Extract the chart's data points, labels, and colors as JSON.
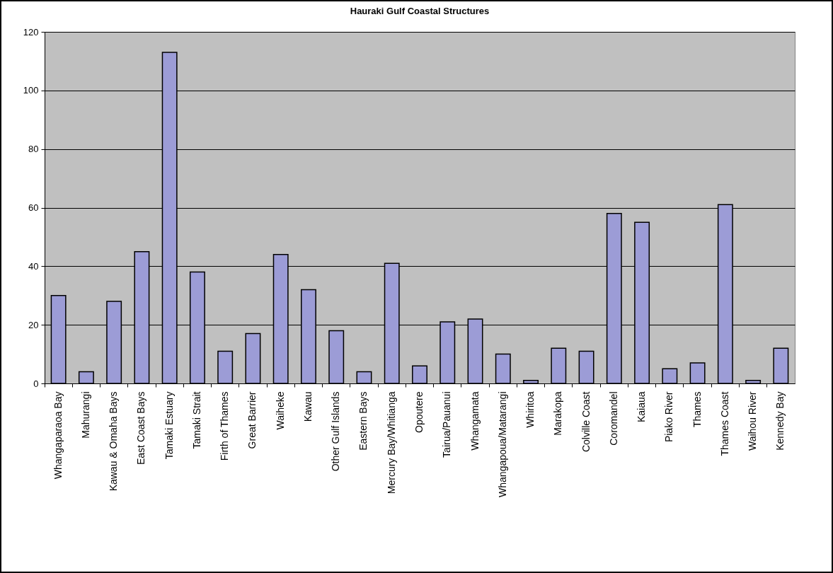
{
  "chart_data": {
    "type": "bar",
    "title": "Hauraki Gulf Coastal Structures",
    "categories": [
      "Whangaparaoa Bay",
      "Mahurangi",
      "Kawau & Omaha Bays",
      "East Coast Bays",
      "Tamaki Estuary",
      "Tamaki Strait",
      "Firth of Thames",
      "Great Barrier",
      "Waiheke",
      "Kawau",
      "Other Gulf Islands",
      "Eastern Bays",
      "Mercury Bay/Whitianga",
      "Opoutere",
      "Tairua/Pauanui",
      "Whangamata",
      "Whangapoua/Matarangi",
      "Whiritoa",
      "Marakopa",
      "Colville Coast",
      "Coromandel",
      "Kaiaua",
      "Piako River",
      "Thames",
      "Thames Coast",
      "Waihou River",
      "Kennedy Bay"
    ],
    "values": [
      30,
      4,
      28,
      45,
      113,
      38,
      11,
      17,
      44,
      32,
      18,
      4,
      41,
      6,
      21,
      22,
      10,
      1,
      12,
      11,
      58,
      55,
      5,
      7,
      61,
      1,
      12
    ],
    "color": "#9c9cd6",
    "ylim": [
      0,
      120
    ],
    "yticks": [
      0,
      20,
      40,
      60,
      80,
      100,
      120
    ],
    "grid": "y"
  }
}
